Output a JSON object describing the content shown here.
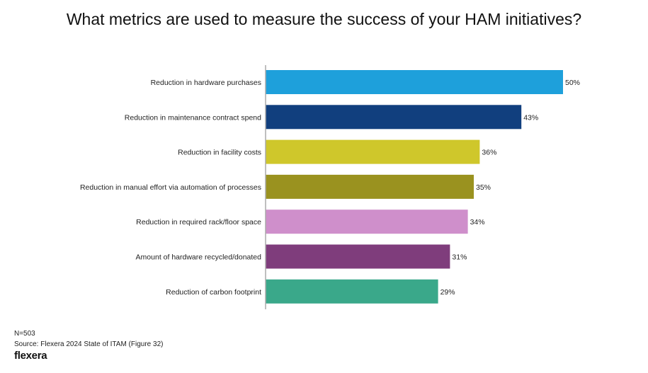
{
  "chart_data": {
    "type": "bar",
    "orientation": "horizontal",
    "title": "What metrics are used to measure the success of your HAM initiatives?",
    "categories": [
      "Reduction in hardware purchases",
      "Reduction in maintenance contract spend",
      "Reduction in facility costs",
      "Reduction in manual effort via automation of processes",
      "Reduction in required rack/floor space",
      "Amount of hardware recycled/donated",
      "Reduction of carbon footprint"
    ],
    "values": [
      50,
      43,
      36,
      35,
      34,
      31,
      29
    ],
    "value_labels": [
      "50%",
      "43%",
      "36%",
      "35%",
      "34%",
      "31%",
      "29%"
    ],
    "colors": [
      "#1ea0db",
      "#113f7e",
      "#cfc72b",
      "#9a921f",
      "#cf8fcb",
      "#7f3d7c",
      "#3aa88a"
    ],
    "xlim": [
      0,
      50
    ],
    "grid": false
  },
  "footer": {
    "n": "N=503",
    "source": "Source: Flexera 2024 State of ITAM (Figure 32)",
    "logo": "flexera"
  }
}
